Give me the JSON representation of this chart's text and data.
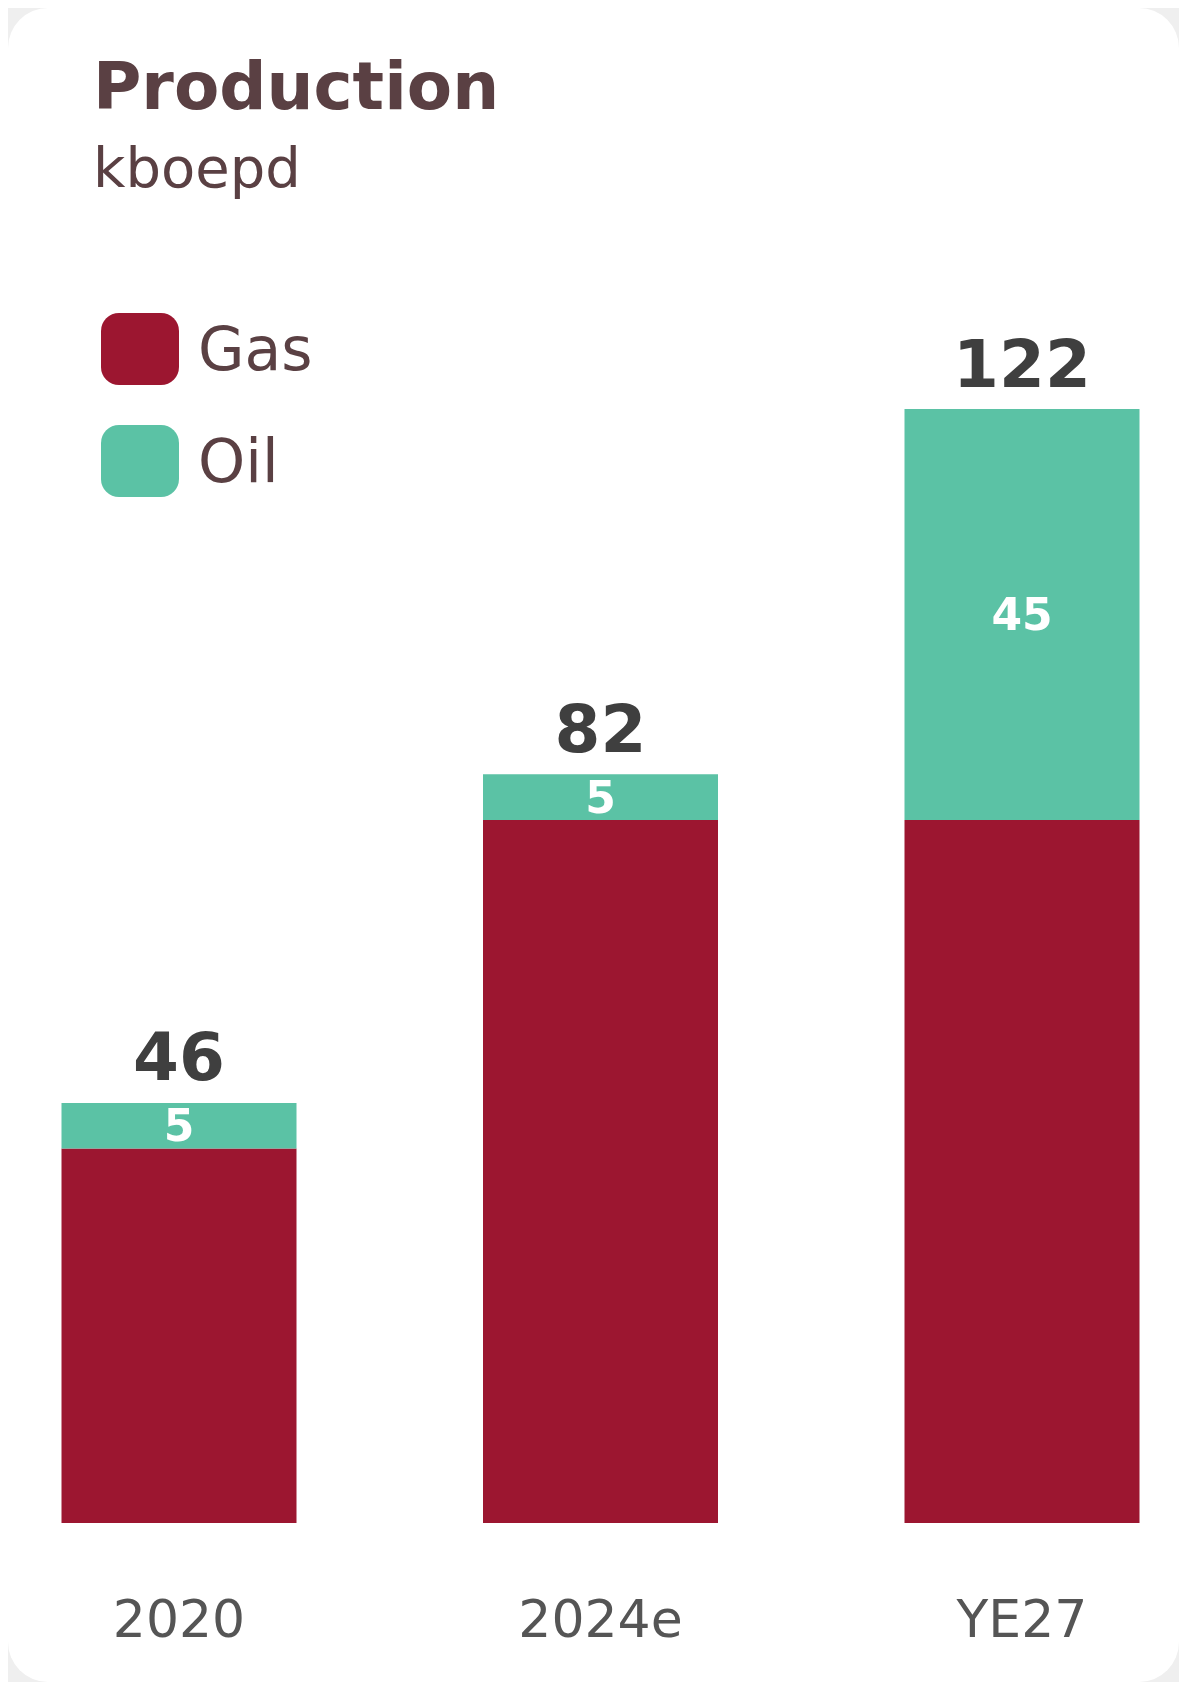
{
  "chart_data": {
    "type": "bar",
    "title": "Production",
    "subtitle": "kboepd",
    "categories": [
      "2020",
      "2024e",
      "YE27"
    ],
    "stacked": true,
    "legend": "top left",
    "totals": [
      "46",
      "82",
      "122"
    ],
    "series": [
      {
        "name": "Gas",
        "color": "#9c1630",
        "values": [
          41,
          77,
          77
        ]
      },
      {
        "name": "Oil",
        "color": "#5bc2a5",
        "values": [
          5,
          5,
          45
        ],
        "value_labels": [
          "5",
          "5",
          "45"
        ]
      }
    ]
  }
}
